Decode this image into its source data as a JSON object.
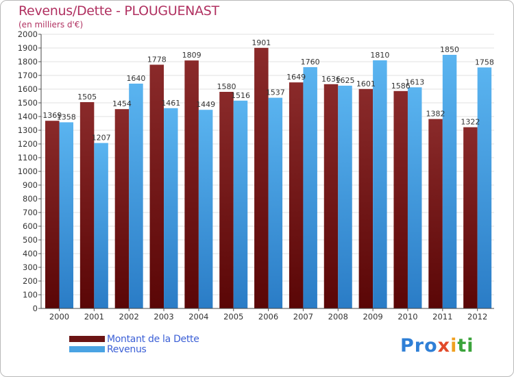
{
  "header": {
    "title": "Revenus/Dette - PLOUGUENAST",
    "subtitle": "(en milliers d'€)"
  },
  "chart_data": {
    "type": "bar",
    "title": "Revenus/Dette - PLOUGUENAST",
    "subtitle": "(en milliers d'€)",
    "xlabel": "",
    "ylabel": "",
    "ylim": [
      0,
      2000
    ],
    "ytick_step": 100,
    "grid": true,
    "legend_position": "bottom-left",
    "categories": [
      "2000",
      "2001",
      "2002",
      "2003",
      "2004",
      "2005",
      "2006",
      "2007",
      "2008",
      "2009",
      "2010",
      "2011",
      "2012"
    ],
    "series": [
      {
        "name": "Montant de la Dette",
        "color": "#7a1c1c",
        "values": [
          1369,
          1505,
          1454,
          1778,
          1809,
          1580,
          1901,
          1649,
          1636,
          1601,
          1586,
          1382,
          1322
        ]
      },
      {
        "name": "Revenus",
        "color": "#4aa3e3",
        "values": [
          1358,
          1207,
          1640,
          1461,
          1449,
          1516,
          1537,
          1760,
          1625,
          1810,
          1613,
          1850,
          1758
        ]
      }
    ]
  },
  "legend": {
    "items": [
      {
        "label": "Montant de la Dette",
        "color": "#6b1414"
      },
      {
        "label": "Revenus",
        "color": "#4aa3e3"
      }
    ]
  },
  "logo": {
    "parts": [
      "Pro",
      "x",
      "i",
      "ti"
    ]
  }
}
